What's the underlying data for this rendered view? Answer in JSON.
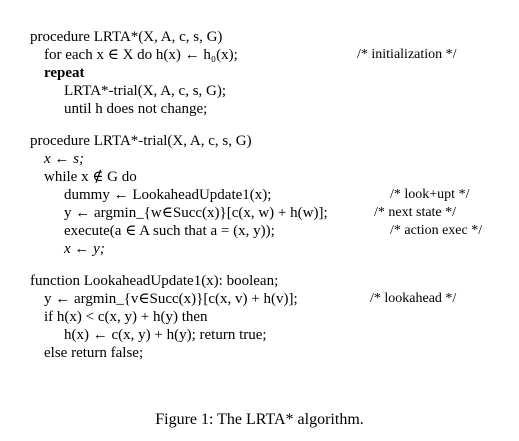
{
  "lines": [
    "procedure LRTA*(X, A, c, s, G)",
    "for each x ∈ X do h(x) ← h₀(x);",
    "repeat",
    "LRTA*-trial(X, A, c, s, G);",
    "until h does not change;",
    "procedure LRTA*-trial(X, A, c, s, G)",
    "x ← s;",
    "while x ∉ G do",
    "dummy ← LookaheadUpdate1(x);",
    "y ← argmin_{w∈Succ(x)}[c(x, w) + h(w)];",
    "execute(a ∈ A such that a = (x, y));",
    "x ← y;",
    "function LookaheadUpdate1(x): boolean;",
    "y ← argmin_{v∈Succ(x)}[c(x, v) + h(v)];",
    "if h(x) < c(x, y) + h(y) then",
    "h(x) ← c(x, y) + h(y); return true;",
    "else return false;"
  ],
  "comments": [
    "/* initialization */",
    "/* look+upt */",
    "/* next state */",
    "/* action exec */",
    "/* lookahead */"
  ],
  "caption": "Figure 1: The LRTA* algorithm."
}
